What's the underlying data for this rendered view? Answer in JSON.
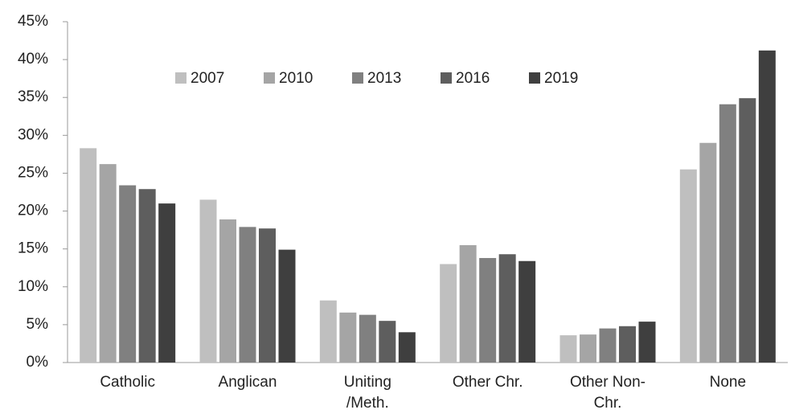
{
  "chart_data": {
    "type": "bar",
    "categories": [
      "Catholic",
      "Anglican",
      "Uniting /Meth.",
      "Other Chr.",
      "Other Non-Chr.",
      "None"
    ],
    "series": [
      {
        "name": "2007",
        "color": "#bfbfbf",
        "values": [
          28.3,
          21.5,
          8.2,
          13.0,
          3.6,
          25.5
        ]
      },
      {
        "name": "2010",
        "color": "#a5a5a5",
        "values": [
          26.2,
          18.9,
          6.6,
          15.5,
          3.7,
          29.0
        ]
      },
      {
        "name": "2013",
        "color": "#808080",
        "values": [
          23.4,
          17.9,
          6.3,
          13.8,
          4.5,
          34.1
        ]
      },
      {
        "name": "2016",
        "color": "#5e5e5e",
        "values": [
          22.9,
          17.7,
          5.5,
          14.3,
          4.8,
          34.9
        ]
      },
      {
        "name": "2019",
        "color": "#3f3f3f",
        "values": [
          21.0,
          14.9,
          4.0,
          13.4,
          5.4,
          41.2
        ]
      }
    ],
    "ylim": [
      0,
      45
    ],
    "yticks": [
      {
        "value": 0,
        "label": "0%"
      },
      {
        "value": 5,
        "label": "5%"
      },
      {
        "value": 10,
        "label": "10%"
      },
      {
        "value": 15,
        "label": "15%"
      },
      {
        "value": 20,
        "label": "20%"
      },
      {
        "value": 25,
        "label": "25%"
      },
      {
        "value": 30,
        "label": "30%"
      },
      {
        "value": 35,
        "label": "35%"
      },
      {
        "value": 40,
        "label": "40%"
      },
      {
        "value": 45,
        "label": "45%"
      }
    ],
    "grid": false,
    "legend": "top"
  }
}
